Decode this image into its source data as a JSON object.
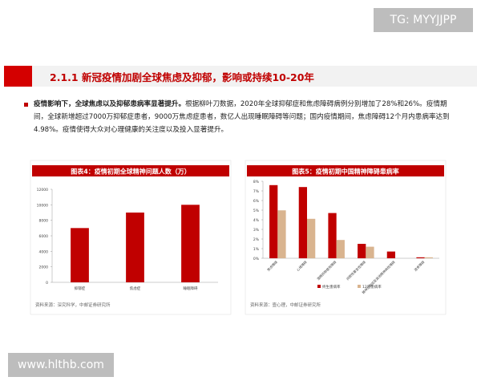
{
  "watermark_top": "TG: MYYJJPP",
  "watermark_bottom": "www.hlthb.com",
  "section_title": "2.1.1 新冠疫情加剧全球焦虑及抑郁，影响或持续10-20年",
  "bullet": {
    "lead": "疫情影响下，全球焦虑以及抑郁患病率显著提升。",
    "text": "根据柳叶刀数据，2020年全球抑郁症和焦虑障碍病例分别增加了28%和26%。疫情期间，全球新增超过7000万抑郁症患者，9000万焦虑症患者，数亿人出现睡眠障碍等问题；国内疫情期间，焦虑障碍12个月内患病率达到4.98%。疫情使得大众对心理健康的关注度以及投入显著提升。"
  },
  "chart_data": [
    {
      "type": "bar",
      "title": "图表4：疫情初期全球精神问题人数（万）",
      "categories": [
        "抑郁症",
        "焦虑症",
        "睡眠障碍"
      ],
      "values": [
        7000,
        9000,
        10000
      ],
      "color": "#c00000",
      "ylim": [
        0,
        12000
      ],
      "yticks": [
        0,
        2000,
        4000,
        6000,
        8000,
        10000,
        12000
      ],
      "source": "资料来源：深究科学，中邮证券研究所"
    },
    {
      "type": "bar",
      "title": "图表5：疫情初期中国精神障碍患病率",
      "categories": [
        "焦虑障碍",
        "心境障碍",
        "酒精药物使用障碍",
        "间歇性暴发性障碍",
        "精神分裂症及其他精神病性障碍",
        "进食障碍"
      ],
      "series": [
        {
          "name": "终生患病率",
          "color": "#c00000",
          "values": [
            7.6,
            7.4,
            4.7,
            1.5,
            0.7,
            0.1
          ]
        },
        {
          "name": "12月患病率",
          "color": "#d9b48f",
          "values": [
            4.98,
            4.1,
            1.9,
            1.2,
            null,
            0.1
          ]
        }
      ],
      "ylim": [
        0,
        8
      ],
      "yticks": [
        {
          "value": 0,
          "label": "0%"
        },
        {
          "value": 1,
          "label": "1%"
        },
        {
          "value": 2,
          "label": "2%"
        },
        {
          "value": 3,
          "label": "3%"
        },
        {
          "value": 4,
          "label": "4%"
        },
        {
          "value": 5,
          "label": "5%"
        },
        {
          "value": 6,
          "label": "6%"
        },
        {
          "value": 7,
          "label": "7%"
        },
        {
          "value": 8,
          "label": "8%"
        }
      ],
      "source": "资料来源：壹心理，中邮证券研究所"
    }
  ]
}
